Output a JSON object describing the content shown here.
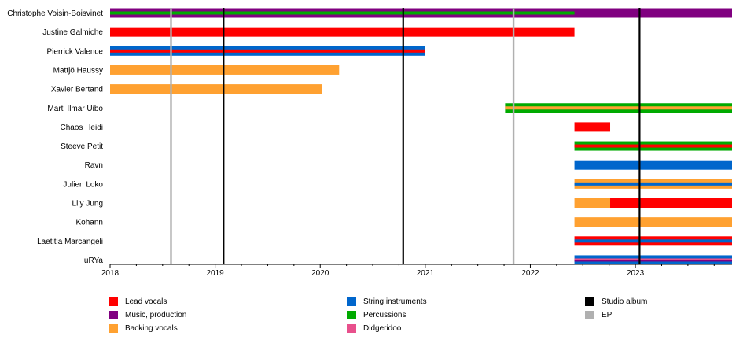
{
  "chart_data": {
    "type": "timeline",
    "x_range": [
      2018,
      2023.92
    ],
    "x_ticks": [
      "2018",
      "2019",
      "2020",
      "2021",
      "2022",
      "2023"
    ],
    "roles": {
      "lead": {
        "label": "Lead vocals",
        "color": "#ff0000"
      },
      "music": {
        "label": "Music, production",
        "color": "#800080"
      },
      "backing": {
        "label": "Backing vocals",
        "color": "#ffa131"
      },
      "string": {
        "label": "String instruments",
        "color": "#0066cc"
      },
      "perc": {
        "label": "Percussions",
        "color": "#00aa00"
      },
      "didg": {
        "label": "Didgeridoo",
        "color": "#e8508c"
      },
      "studio": {
        "label": "Studio album",
        "color": "#000000"
      },
      "ep": {
        "label": "EP",
        "color": "#b0b0b0"
      }
    },
    "legend": [
      [
        "lead",
        "music",
        "backing"
      ],
      [
        "string",
        "perc",
        "didg"
      ],
      [
        "studio",
        "ep"
      ]
    ],
    "releases": [
      {
        "type": "studio",
        "date": 2019.08
      },
      {
        "type": "studio",
        "date": 2020.79
      },
      {
        "type": "studio",
        "date": 2023.04
      },
      {
        "type": "ep",
        "date": 2018.58
      },
      {
        "type": "ep",
        "date": 2021.84
      }
    ],
    "members": [
      {
        "name": "Christophe Voisin-Boisvinet",
        "segments": [
          {
            "start": 2018,
            "end": 2023.92,
            "main": "music",
            "inner": [
              "perc"
            ],
            "inner_end": 2022.42
          }
        ]
      },
      {
        "name": "Justine Galmiche",
        "segments": [
          {
            "start": 2018,
            "end": 2022.42,
            "main": "lead",
            "inner": []
          }
        ]
      },
      {
        "name": "Pierrick Valence",
        "segments": [
          {
            "start": 2018,
            "end": 2021.0,
            "main": "string",
            "inner": [
              "lead"
            ]
          }
        ]
      },
      {
        "name": "Mattjö Haussy",
        "segments": [
          {
            "start": 2018,
            "end": 2020.18,
            "main": "backing",
            "inner": []
          }
        ]
      },
      {
        "name": "Xavier Bertand",
        "segments": [
          {
            "start": 2018,
            "end": 2020.02,
            "main": "backing",
            "inner": []
          }
        ]
      },
      {
        "name": "Marti Ilmar Uibo",
        "segments": [
          {
            "start": 2021.76,
            "end": 2023.92,
            "main": "perc",
            "inner": [
              "backing"
            ]
          }
        ]
      },
      {
        "name": "Chaos Heidi",
        "segments": [
          {
            "start": 2022.42,
            "end": 2022.76,
            "main": "lead",
            "inner": []
          }
        ]
      },
      {
        "name": "Steeve Petit",
        "segments": [
          {
            "start": 2022.42,
            "end": 2023.92,
            "main": "perc",
            "inner": [
              "lead"
            ]
          }
        ]
      },
      {
        "name": "Ravn",
        "segments": [
          {
            "start": 2022.42,
            "end": 2023.92,
            "main": "string",
            "inner": []
          }
        ]
      },
      {
        "name": "Julien Loko",
        "segments": [
          {
            "start": 2022.42,
            "end": 2023.92,
            "main": "backing",
            "inner": [
              "string"
            ]
          }
        ]
      },
      {
        "name": "Lily Jung",
        "segments": [
          {
            "start": 2022.42,
            "end": 2022.76,
            "main": "backing",
            "inner": []
          },
          {
            "start": 2022.76,
            "end": 2023.92,
            "main": "lead",
            "inner": []
          }
        ]
      },
      {
        "name": "Kohann",
        "segments": [
          {
            "start": 2022.42,
            "end": 2023.92,
            "main": "backing",
            "inner": []
          }
        ]
      },
      {
        "name": "Laetitia Marcangeli",
        "segments": [
          {
            "start": 2022.42,
            "end": 2023.92,
            "main": "lead",
            "inner": [
              "string"
            ]
          }
        ]
      },
      {
        "name": "uRYa",
        "segments": [
          {
            "start": 2022.42,
            "end": 2023.92,
            "main": "string",
            "inner": [
              "didg",
              "music"
            ]
          }
        ]
      }
    ]
  }
}
